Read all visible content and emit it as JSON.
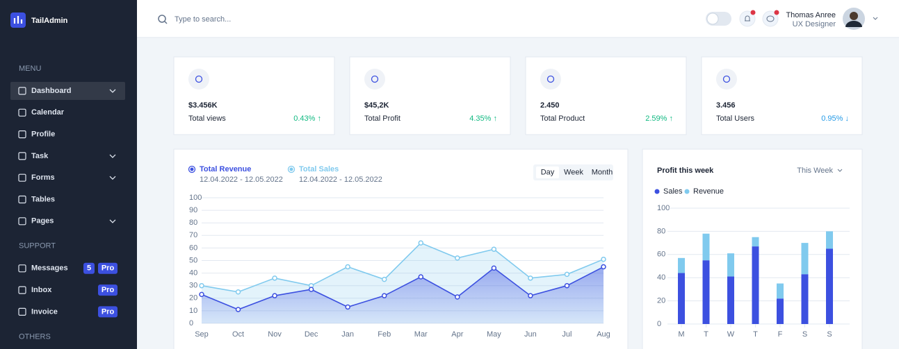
{
  "sidebar": {
    "logo": "TailAdmin",
    "sections": [
      {
        "title": "MENU",
        "items": [
          {
            "label": "Dashboard",
            "active": true,
            "submenu": true
          },
          {
            "label": "Calendar"
          },
          {
            "label": "Profile"
          },
          {
            "label": "Task",
            "submenu": true
          },
          {
            "label": "Forms",
            "submenu": true
          },
          {
            "label": "Tables"
          },
          {
            "label": "Pages",
            "submenu": true
          }
        ]
      },
      {
        "title": "SUPPORT",
        "items": [
          {
            "label": "Messages",
            "badges": [
              "5",
              "Pro"
            ]
          },
          {
            "label": "Inbox",
            "badges": [
              "Pro"
            ]
          },
          {
            "label": "Invoice",
            "badges": [
              "Pro"
            ]
          }
        ]
      },
      {
        "title": "OTHERS",
        "items": []
      }
    ]
  },
  "header": {
    "search_placeholder": "Type to search...",
    "user": {
      "name": "Thomas Anree",
      "role": "UX Designer"
    }
  },
  "cards": [
    {
      "value": "$3.456K",
      "label": "Total views",
      "change": "0.43% ↑",
      "change_color": "#10b981"
    },
    {
      "value": "$45,2K",
      "label": "Total Profit",
      "change": "4.35% ↑",
      "change_color": "#10b981"
    },
    {
      "value": "2.450",
      "label": "Total Product",
      "change": "2.59% ↑",
      "change_color": "#10b981"
    },
    {
      "value": "3.456",
      "label": "Total Users",
      "change": "0.95% ↓",
      "change_color": "#259ae6"
    }
  ],
  "chart_data": [
    {
      "type": "area",
      "periods": [
        "Day",
        "Week",
        "Month"
      ],
      "active_period": 0,
      "categories": [
        "Sep",
        "Oct",
        "Nov",
        "Dec",
        "Jan",
        "Feb",
        "Mar",
        "Apr",
        "May",
        "Jun",
        "Jul",
        "Aug"
      ],
      "series": [
        {
          "name": "Total Revenue",
          "date_range": "12.04.2022 - 12.05.2022",
          "color": "#3c50e0",
          "values": [
            23,
            11,
            22,
            27,
            13,
            22,
            37,
            21,
            44,
            22,
            30,
            45
          ]
        },
        {
          "name": "Total Sales",
          "date_range": "12.04.2022 - 12.05.2022",
          "color": "#80caee",
          "values": [
            30,
            25,
            36,
            30,
            45,
            35,
            64,
            52,
            59,
            36,
            39,
            51
          ]
        }
      ],
      "ylim": [
        0,
        100
      ],
      "yticks": [
        0,
        10,
        20,
        30,
        40,
        50,
        60,
        70,
        80,
        90,
        100
      ],
      "grid": true
    },
    {
      "type": "stacked_bar",
      "title": "Profit this week",
      "period": "This Week",
      "categories": [
        "M",
        "T",
        "W",
        "T",
        "F",
        "S",
        "S"
      ],
      "series": [
        {
          "name": "Sales",
          "color": "#3c50e0",
          "values": [
            44,
            55,
            41,
            67,
            22,
            43,
            65
          ]
        },
        {
          "name": "Revenue",
          "color": "#80caee",
          "values": [
            13,
            23,
            20,
            8,
            13,
            27,
            15
          ]
        }
      ],
      "ylim": [
        0,
        100
      ],
      "yticks": [
        0,
        20,
        40,
        60,
        80,
        100
      ],
      "grid": true
    }
  ]
}
